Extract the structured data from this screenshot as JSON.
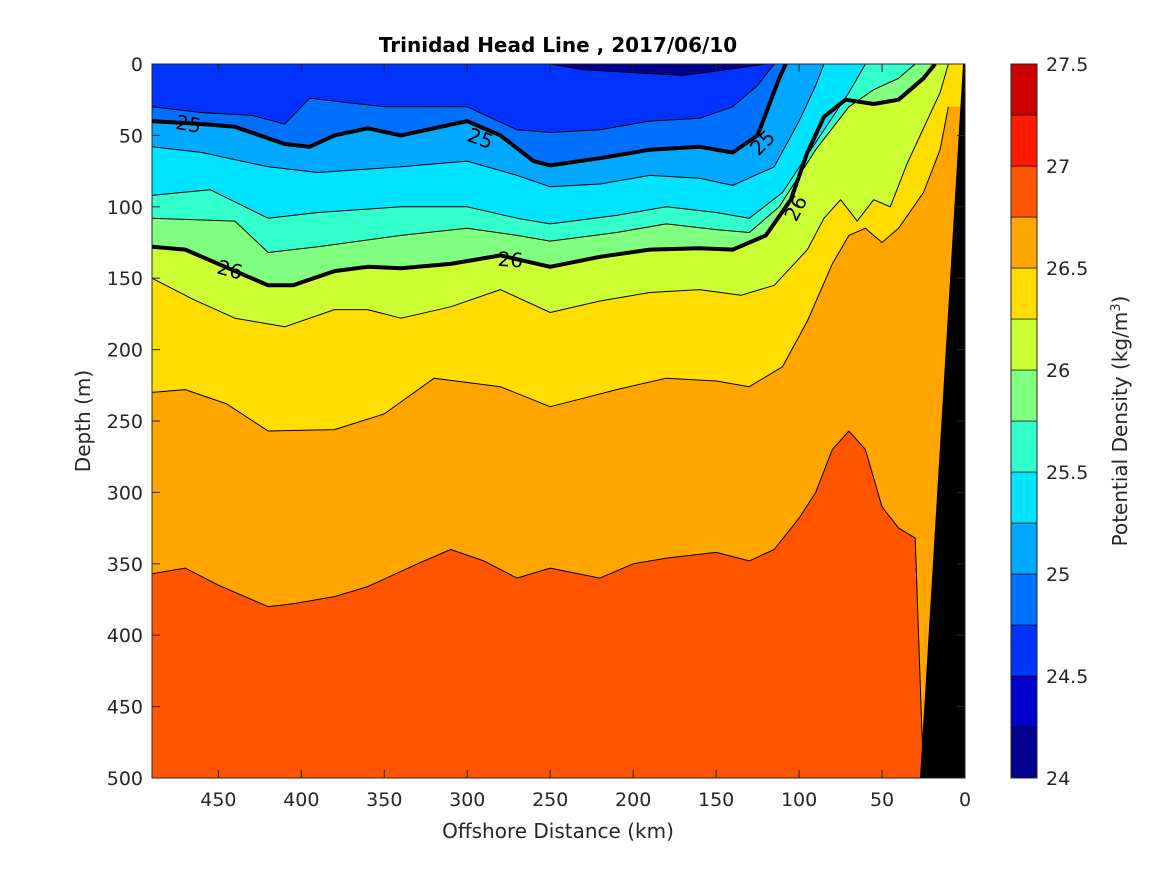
{
  "chart_data": {
    "type": "contour",
    "title": "Trinidad Head Line , 2017/06/10",
    "xlabel": "Offshore Distance (km)",
    "ylabel": "Depth (m)",
    "colorbar_label_main": "Potential Density (kg/m",
    "colorbar_label_sup": "3",
    "colorbar_label_close": ")",
    "xlim": [
      490,
      0
    ],
    "ylim": [
      500,
      0
    ],
    "x_reversed": true,
    "y_reversed": true,
    "xticks": [
      450,
      400,
      350,
      300,
      250,
      200,
      150,
      100,
      50,
      0
    ],
    "yticks": [
      0,
      50,
      100,
      150,
      200,
      250,
      300,
      350,
      400,
      450,
      500
    ],
    "colorbar": {
      "range": [
        24,
        27.5
      ],
      "ticks": [
        24,
        24.5,
        25,
        25.5,
        26,
        26.5,
        27,
        27.5
      ],
      "levels": [
        24,
        24.25,
        24.5,
        24.75,
        25,
        25.25,
        25.5,
        25.75,
        26,
        26.25,
        26.5,
        26.75,
        27,
        27.25,
        27.5
      ],
      "colors": [
        "#00008f",
        "#0000cc",
        "#0033ff",
        "#0070ff",
        "#00a8ff",
        "#00e3ff",
        "#33ffcc",
        "#80ff80",
        "#ccff33",
        "#ffdd00",
        "#ffa500",
        "#ff5500",
        "#ff1a00",
        "#cc0000"
      ]
    },
    "contour_labels": [
      {
        "text": "25",
        "x": 468,
        "y": 42,
        "rotate": 10
      },
      {
        "text": "25",
        "x": 292,
        "y": 52,
        "rotate": 20
      },
      {
        "text": "25",
        "x": 122,
        "y": 55,
        "rotate": -45
      },
      {
        "text": "26",
        "x": 102,
        "y": 101,
        "rotate": -62
      },
      {
        "text": "26",
        "x": 443,
        "y": 144,
        "rotate": 15
      },
      {
        "text": "26",
        "x": 274,
        "y": 137,
        "rotate": 4
      }
    ],
    "isopycnals": [
      {
        "level": 24.5,
        "points": [
          [
            250,
            0
          ],
          [
            230,
            4
          ],
          [
            200,
            6
          ],
          [
            170,
            8
          ],
          [
            150,
            5
          ],
          [
            120,
            0
          ]
        ]
      },
      {
        "level": 24.75,
        "points": [
          [
            490,
            30
          ],
          [
            460,
            34
          ],
          [
            430,
            36
          ],
          [
            410,
            42
          ],
          [
            395,
            24
          ],
          [
            350,
            30
          ],
          [
            300,
            30
          ],
          [
            270,
            46
          ],
          [
            250,
            48
          ],
          [
            220,
            46
          ],
          [
            190,
            40
          ],
          [
            160,
            38
          ],
          [
            140,
            30
          ],
          [
            125,
            15
          ],
          [
            115,
            0
          ]
        ]
      },
      {
        "level": 25,
        "points": [
          [
            490,
            40
          ],
          [
            460,
            42
          ],
          [
            440,
            44
          ],
          [
            410,
            56
          ],
          [
            395,
            58
          ],
          [
            380,
            50
          ],
          [
            360,
            45
          ],
          [
            340,
            50
          ],
          [
            300,
            40
          ],
          [
            280,
            50
          ],
          [
            260,
            68
          ],
          [
            250,
            71
          ],
          [
            220,
            66
          ],
          [
            190,
            60
          ],
          [
            160,
            58
          ],
          [
            140,
            62
          ],
          [
            125,
            50
          ],
          [
            112,
            10
          ],
          [
            108,
            0
          ]
        ]
      },
      {
        "level": 25.25,
        "points": [
          [
            490,
            58
          ],
          [
            460,
            62
          ],
          [
            420,
            72
          ],
          [
            390,
            76
          ],
          [
            340,
            72
          ],
          [
            300,
            68
          ],
          [
            270,
            78
          ],
          [
            250,
            86
          ],
          [
            220,
            84
          ],
          [
            190,
            78
          ],
          [
            160,
            80
          ],
          [
            140,
            85
          ],
          [
            115,
            72
          ],
          [
            100,
            40
          ],
          [
            90,
            15
          ],
          [
            85,
            0
          ]
        ]
      },
      {
        "level": 25.5,
        "points": [
          [
            490,
            92
          ],
          [
            455,
            88
          ],
          [
            420,
            108
          ],
          [
            390,
            104
          ],
          [
            340,
            100
          ],
          [
            300,
            100
          ],
          [
            270,
            108
          ],
          [
            250,
            112
          ],
          [
            210,
            106
          ],
          [
            180,
            100
          ],
          [
            150,
            104
          ],
          [
            130,
            108
          ],
          [
            110,
            90
          ],
          [
            90,
            55
          ],
          [
            70,
            20
          ],
          [
            60,
            0
          ]
        ]
      },
      {
        "level": 25.75,
        "points": [
          [
            490,
            108
          ],
          [
            440,
            110
          ],
          [
            420,
            132
          ],
          [
            390,
            128
          ],
          [
            340,
            120
          ],
          [
            300,
            115
          ],
          [
            270,
            120
          ],
          [
            250,
            124
          ],
          [
            210,
            118
          ],
          [
            180,
            112
          ],
          [
            150,
            116
          ],
          [
            130,
            118
          ],
          [
            112,
            100
          ],
          [
            90,
            60
          ],
          [
            70,
            30
          ],
          [
            55,
            18
          ],
          [
            40,
            10
          ],
          [
            30,
            0
          ]
        ]
      },
      {
        "level": 26,
        "points": [
          [
            490,
            128
          ],
          [
            470,
            130
          ],
          [
            450,
            140
          ],
          [
            420,
            155
          ],
          [
            405,
            155
          ],
          [
            380,
            145
          ],
          [
            360,
            142
          ],
          [
            340,
            143
          ],
          [
            310,
            140
          ],
          [
            280,
            134
          ],
          [
            250,
            142
          ],
          [
            220,
            135
          ],
          [
            190,
            130
          ],
          [
            160,
            129
          ],
          [
            140,
            130
          ],
          [
            120,
            120
          ],
          [
            105,
            95
          ],
          [
            95,
            62
          ],
          [
            85,
            37
          ],
          [
            72,
            25
          ],
          [
            55,
            28
          ],
          [
            40,
            25
          ],
          [
            25,
            10
          ],
          [
            18,
            0
          ]
        ]
      },
      {
        "level": 26.25,
        "points": [
          [
            490,
            150
          ],
          [
            465,
            165
          ],
          [
            440,
            178
          ],
          [
            410,
            184
          ],
          [
            380,
            172
          ],
          [
            360,
            172
          ],
          [
            340,
            178
          ],
          [
            310,
            170
          ],
          [
            280,
            158
          ],
          [
            250,
            174
          ],
          [
            220,
            166
          ],
          [
            190,
            160
          ],
          [
            160,
            158
          ],
          [
            135,
            162
          ],
          [
            115,
            155
          ],
          [
            95,
            130
          ],
          [
            85,
            108
          ],
          [
            75,
            95
          ],
          [
            65,
            110
          ],
          [
            55,
            95
          ],
          [
            45,
            100
          ],
          [
            35,
            70
          ],
          [
            25,
            45
          ],
          [
            15,
            20
          ],
          [
            10,
            0
          ]
        ]
      },
      {
        "level": 26.5,
        "points": [
          [
            490,
            230
          ],
          [
            470,
            228
          ],
          [
            445,
            238
          ],
          [
            420,
            257
          ],
          [
            380,
            256
          ],
          [
            350,
            245
          ],
          [
            320,
            220
          ],
          [
            280,
            226
          ],
          [
            250,
            240
          ],
          [
            230,
            234
          ],
          [
            210,
            228
          ],
          [
            180,
            220
          ],
          [
            150,
            222
          ],
          [
            130,
            226
          ],
          [
            110,
            212
          ],
          [
            95,
            180
          ],
          [
            80,
            140
          ],
          [
            70,
            120
          ],
          [
            60,
            115
          ],
          [
            50,
            125
          ],
          [
            40,
            115
          ],
          [
            25,
            90
          ],
          [
            15,
            60
          ],
          [
            10,
            30
          ]
        ]
      },
      {
        "level": 26.75,
        "points": [
          [
            490,
            357
          ],
          [
            470,
            353
          ],
          [
            450,
            365
          ],
          [
            420,
            380
          ],
          [
            405,
            378
          ],
          [
            380,
            373
          ],
          [
            360,
            366
          ],
          [
            330,
            350
          ],
          [
            310,
            340
          ],
          [
            290,
            348
          ],
          [
            270,
            360
          ],
          [
            250,
            353
          ],
          [
            220,
            360
          ],
          [
            200,
            350
          ],
          [
            180,
            346
          ],
          [
            150,
            342
          ],
          [
            130,
            348
          ],
          [
            115,
            340
          ],
          [
            100,
            318
          ],
          [
            90,
            300
          ],
          [
            80,
            270
          ],
          [
            70,
            257
          ],
          [
            60,
            270
          ],
          [
            50,
            310
          ],
          [
            40,
            325
          ],
          [
            30,
            332
          ],
          [
            25,
            500
          ]
        ]
      }
    ]
  }
}
